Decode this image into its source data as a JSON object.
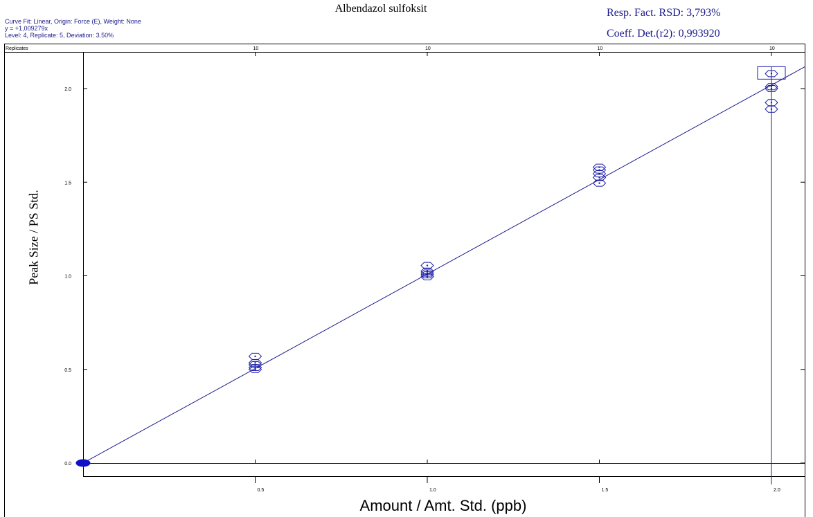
{
  "header": {
    "curve_fit": "Curve Fit: Linear,   Origin: Force (E),   Weight: None",
    "equation": "y =    +1,009279x",
    "level_info": "Level:  4,  Replicate:  5,  Deviation:  3.50%",
    "rsd": "Resp. Fact. RSD:  3,793%",
    "coeff": "Coeff. Det.(r2):  0,993920"
  },
  "chart_data": {
    "type": "scatter",
    "title": "Albendazol sulfoksit",
    "xlabel": "Amount / Amt. Std. (ppb)",
    "ylabel": "Peak Size / PS Std.",
    "xlim": [
      0,
      2.08
    ],
    "ylim": [
      -0.07,
      2.16
    ],
    "x_ticks": [
      "0.5",
      "1.0",
      "1.5",
      "2.0"
    ],
    "x_tick_values": [
      0.5,
      1.0,
      1.5,
      2.0
    ],
    "y_ticks": [
      "0.0",
      "0.5",
      "1.0",
      "1.5",
      "2.0"
    ],
    "y_tick_values": [
      0.0,
      0.5,
      1.0,
      1.5,
      2.0
    ],
    "replicates_label": "Replicates",
    "replicates": [
      "10",
      "10",
      "10",
      "10"
    ],
    "fit": {
      "type": "linear",
      "slope": 1.009279,
      "intercept": 0
    },
    "series": [
      {
        "points": [
          {
            "x": 0.5,
            "y": 0.57
          },
          {
            "x": 0.5,
            "y": 0.535
          },
          {
            "x": 0.5,
            "y": 0.525
          },
          {
            "x": 0.5,
            "y": 0.51
          },
          {
            "x": 0.5,
            "y": 0.5
          },
          {
            "x": 1.0,
            "y": 1.055
          },
          {
            "x": 1.0,
            "y": 1.025
          },
          {
            "x": 1.0,
            "y": 1.015
          },
          {
            "x": 1.0,
            "y": 1.005
          },
          {
            "x": 1.0,
            "y": 0.995
          },
          {
            "x": 1.5,
            "y": 1.58
          },
          {
            "x": 1.5,
            "y": 1.565
          },
          {
            "x": 1.5,
            "y": 1.545
          },
          {
            "x": 1.5,
            "y": 1.525
          },
          {
            "x": 1.5,
            "y": 1.495
          },
          {
            "x": 2.0,
            "y": 2.08
          },
          {
            "x": 2.0,
            "y": 2.01
          },
          {
            "x": 2.0,
            "y": 2.0
          },
          {
            "x": 2.0,
            "y": 1.925
          },
          {
            "x": 2.0,
            "y": 1.89
          }
        ],
        "color": "#1a1aa8"
      }
    ],
    "origin_marker": {
      "x": 0,
      "y": 0
    },
    "selected_point": {
      "x": 2.0,
      "y": 2.08
    },
    "grid": false
  }
}
